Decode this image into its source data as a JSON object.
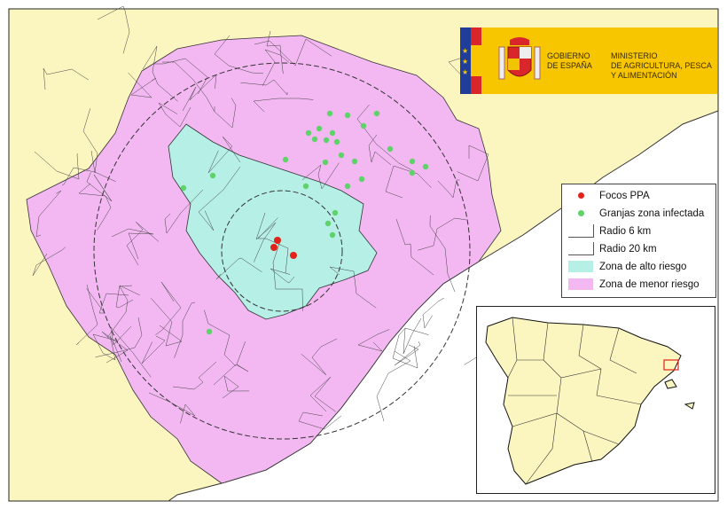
{
  "logo": {
    "government": [
      "GOBIERNO",
      "DE ESPAÑA"
    ],
    "ministry": [
      "MINISTERIO",
      "DE AGRICULTURA, PESCA",
      "Y ALIMENTACIÓN"
    ]
  },
  "legend": {
    "items": [
      {
        "label": "Focos PPA",
        "symbol": "red-dot",
        "color": "#e2231a"
      },
      {
        "label": "Granjas zona infectada",
        "symbol": "green-dot",
        "color": "#5fd36a"
      },
      {
        "label": "Radio 6 km",
        "symbol": "line"
      },
      {
        "label": "Radio 20 km",
        "symbol": "line"
      },
      {
        "label": "Zona de alto riesgo",
        "symbol": "swatch",
        "color": "#b6efe6"
      },
      {
        "label": "Zona de menor riesgo",
        "symbol": "swatch",
        "color": "#f3b8f2"
      }
    ]
  },
  "colors": {
    "land_outside": "#fbf5c0",
    "sea": "#ffffff",
    "high_risk": "#b6efe6",
    "lower_risk": "#f3b8f2",
    "outbreak": "#e2231a",
    "farm": "#5fd36a",
    "inset_highlight": "#e2231a"
  }
}
